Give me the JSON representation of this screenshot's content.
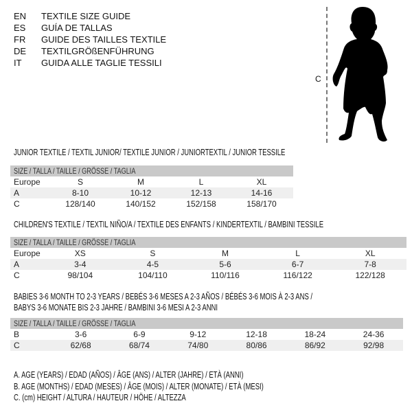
{
  "languages": [
    {
      "code": "EN",
      "name": "TEXTILE SIZE GUIDE"
    },
    {
      "code": "ES",
      "name": "GUÍA DE TALLAS"
    },
    {
      "code": "FR",
      "name": "GUIDE DES TAILLES TEXTILE"
    },
    {
      "code": "DE",
      "name": "TEXTILGRÖßENFÜHRUNG"
    },
    {
      "code": "IT",
      "name": "GUIDA ALLE TAGLIE TESSILI"
    }
  ],
  "figure": {
    "height_label": "C",
    "icon": "baby-silhouette"
  },
  "size_header": "SIZE / TALLA / TAILLE / GRÖSSE / TAGLIA",
  "junior": {
    "title": "JUNIOR TEXTILE / TEXTIL JUNIOR/ TEXTILE JUNIOR / JUNIORTEXTIL / JUNIOR TESSILE",
    "rows": [
      {
        "label": "Europe",
        "values": [
          "S",
          "M",
          "L",
          "XL"
        ]
      },
      {
        "label": "A",
        "values": [
          "8-10",
          "10-12",
          "12-13",
          "14-16"
        ]
      },
      {
        "label": "C",
        "values": [
          "128/140",
          "140/152",
          "152/158",
          "158/170"
        ]
      }
    ]
  },
  "children": {
    "title": "CHILDREN'S TEXTILE / TEXTIL NIÑO/A / TEXTILE DES ENFANTS / KINDERTEXTIL / BAMBINI TESSILE",
    "rows": [
      {
        "label": "Europe",
        "values": [
          "XS",
          "S",
          "M",
          "L",
          "XL"
        ]
      },
      {
        "label": "A",
        "values": [
          "3-4",
          "4-5",
          "5-6",
          "6-7",
          "7-8"
        ]
      },
      {
        "label": "C",
        "values": [
          "98/104",
          "104/110",
          "110/116",
          "116/122",
          "122/128"
        ]
      }
    ]
  },
  "babies": {
    "title_line1": "BABIES 3-6 MONTH TO 2-3 YEARS / BEBÉS 3-6 MESES A 2-3 AÑOS / BÉBÉS 3-6 MOIS À 2-3 ANS /",
    "title_line2": "BABYS 3-6 MONATE BIS 2-3 JAHRE / BAMBINI 3-6 MESI A 2-3 ANNI",
    "rows": [
      {
        "label": "B",
        "values": [
          "3-6",
          "6-9",
          "9-12",
          "12-18",
          "18-24",
          "24-36"
        ]
      },
      {
        "label": "C",
        "values": [
          "62/68",
          "68/74",
          "74/80",
          "80/86",
          "86/92",
          "92/98"
        ]
      }
    ]
  },
  "legend": [
    "A. AGE (YEARS) / EDAD (AÑOS) / ÂGE (ANS) / ALTER (JAHRE) / ETÀ (ANNI)",
    "B. AGE (MONTHS) / EDAD (MESES) / ÂGE (MOIS) / ALTER (MONATE) / ETÀ (MESI)",
    "C. (cm) HEIGHT / ALTURA / HAUTEUR / HÖHE / ALTEZZA"
  ]
}
